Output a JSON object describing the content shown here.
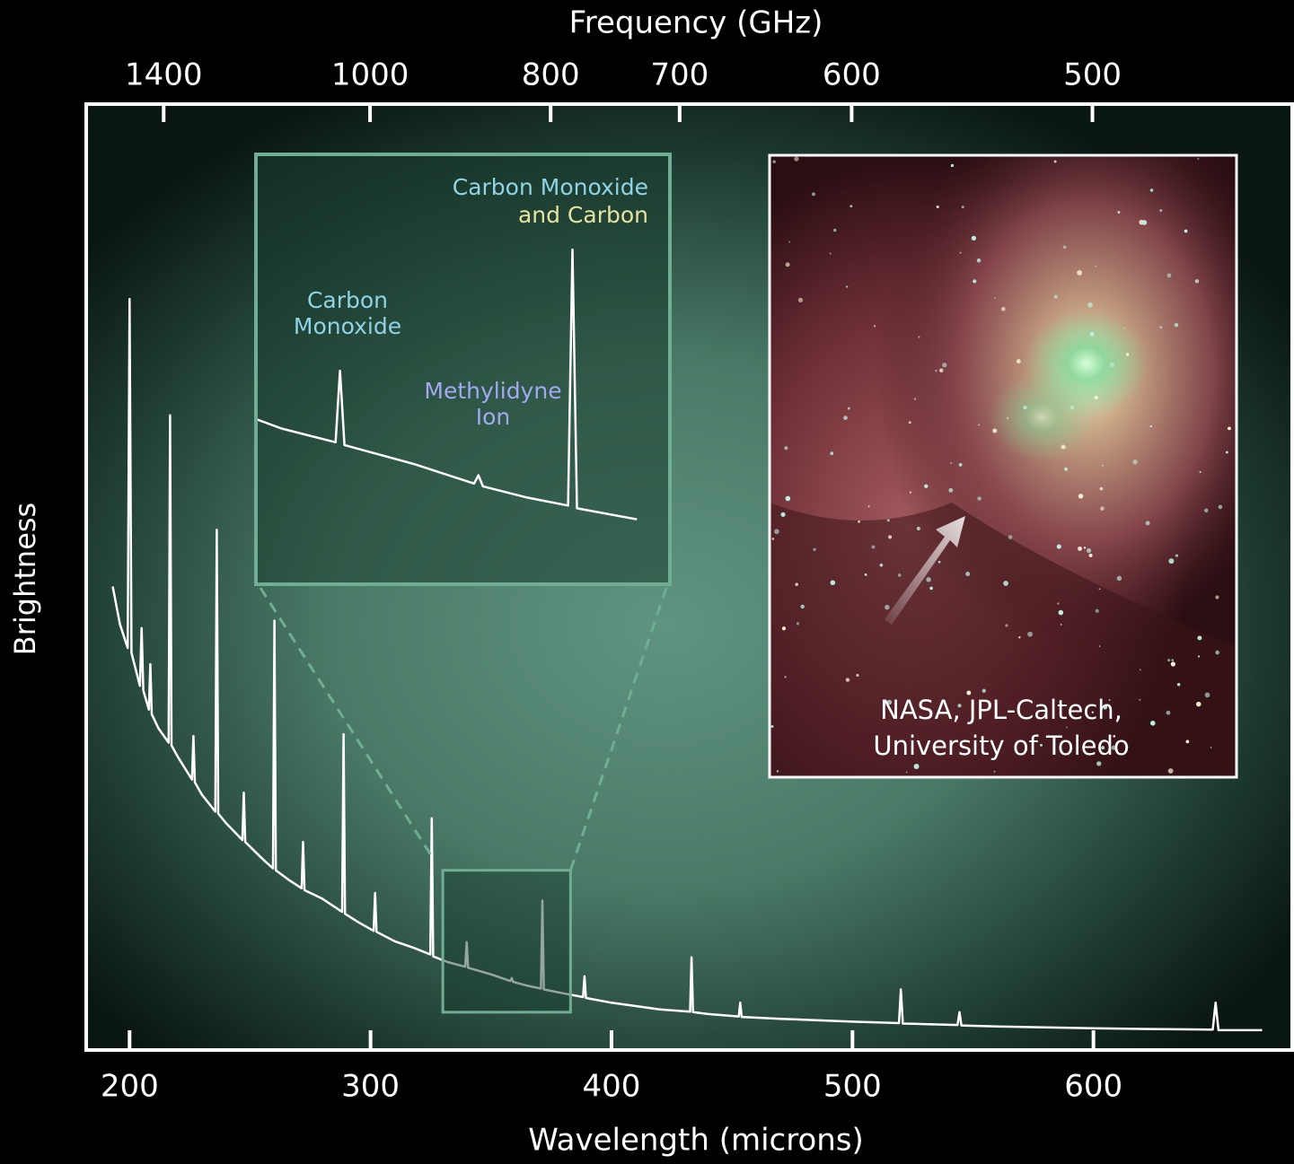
{
  "chart_data": {
    "type": "line",
    "title": "Frequency (GHz)",
    "x_label": "Wavelength (microns)",
    "y_label": "Brightness",
    "color": "#ffffff",
    "xlim": [
      182,
      681
    ],
    "xticks": [
      200,
      300,
      400,
      500,
      600
    ],
    "x2ticks": [
      1400,
      1000,
      800,
      700,
      600,
      500
    ],
    "ylim": [
      0,
      100
    ],
    "x": [
      193,
      196,
      199.2,
      200,
      200.8,
      204.3,
      205,
      205.7,
      208,
      208.6,
      209.2,
      212,
      216.2,
      216.8,
      217.4,
      220,
      225.9,
      226.5,
      227.1,
      230,
      235.6,
      236.2,
      236.8,
      240,
      246.8,
      247.4,
      248,
      252,
      256,
      259.5,
      260.1,
      260.7,
      266,
      271.4,
      272,
      272.6,
      280,
      288.2,
      288.8,
      289.4,
      295,
      301.3,
      301.9,
      302.5,
      310,
      318,
      324.8,
      325.4,
      326,
      332,
      339.3,
      339.9,
      340.5,
      350,
      358,
      358.6,
      359.2,
      365,
      370.7,
      371.3,
      371.9,
      380,
      388.2,
      388.8,
      389.4,
      400,
      420,
      432.6,
      433.2,
      433.8,
      440,
      452.8,
      453.4,
      454,
      470,
      500,
      519.3,
      520.1,
      520.9,
      535,
      543.6,
      544.4,
      545.2,
      560,
      600,
      630,
      649.5,
      650.7,
      651.9,
      670
    ],
    "values": [
      49,
      45,
      42.5,
      79.4,
      42,
      38.5,
      44.6,
      38,
      36,
      40.8,
      35.5,
      34,
      32.5,
      67.1,
      32.2,
      31,
      28.6,
      33.2,
      28.3,
      27,
      25.2,
      55,
      25,
      24,
      22.2,
      27.2,
      22,
      21,
      20,
      19.2,
      45.4,
      19,
      18,
      17.1,
      22,
      16.9,
      16,
      14.6,
      33.4,
      14.4,
      13.5,
      12.6,
      16.6,
      12.5,
      11.5,
      10.8,
      10.1,
      24.5,
      9.9,
      9.3,
      8.8,
      11.4,
      8.7,
      8,
      7.3,
      7.6,
      7.2,
      6.8,
      6.5,
      15.8,
      6.4,
      6,
      5.6,
      7.8,
      5.5,
      5,
      4.3,
      4.05,
      9.8,
      4,
      3.8,
      3.55,
      5,
      3.5,
      3.3,
      3,
      2.85,
      6.4,
      2.8,
      2.7,
      2.65,
      4,
      2.6,
      2.5,
      2.3,
      2.2,
      2.15,
      5,
      2.1,
      2.1
    ],
    "inset_xlim": [
      330,
      383
    ],
    "inset_ylim": [
      4,
      19
    ],
    "annotations": [
      "Carbon Monoxide",
      "and Carbon",
      "Carbon",
      "Monoxide",
      "Methylidyne",
      "Ion"
    ],
    "credit": [
      "NASA, JPL-Caltech,",
      "University of Toledo"
    ]
  }
}
